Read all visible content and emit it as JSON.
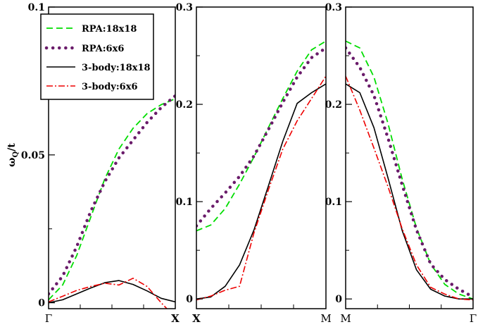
{
  "chart_data": [
    {
      "type": "line",
      "title": "",
      "xlabel": "",
      "ylabel": "ω_Q/t",
      "ylabel_main": "ω",
      "ylabel_sub": "Q",
      "ylabel_rest": "/t",
      "x_start_label": "Γ",
      "x_end_label": "X",
      "x": [
        0,
        1,
        2,
        3,
        4,
        5,
        6,
        7,
        8,
        9
      ],
      "ylim": [
        -0.002,
        0.1
      ],
      "yticks": [
        0,
        0.05,
        0.1
      ],
      "ytick_labels": [
        "0",
        "0.05",
        "0.1"
      ],
      "legend": {
        "placement": "top-left",
        "entries": [
          "RPA:18x18",
          "RPA:6x6",
          "3-body:18x18",
          "3-body:6x6"
        ]
      },
      "series": [
        {
          "name": "RPA:18x18",
          "color": "#00dd00",
          "dash": "dashed",
          "values": [
            0.001,
            0.006,
            0.016,
            0.029,
            0.042,
            0.052,
            0.059,
            0.064,
            0.067,
            0.069
          ]
        },
        {
          "name": "RPA:6x6",
          "color": "#6a1b6a",
          "dash": "dotted",
          "values": [
            0.003,
            0.009,
            0.019,
            0.031,
            0.041,
            0.049,
            0.055,
            0.061,
            0.066,
            0.07
          ]
        },
        {
          "name": "3-body:18x18",
          "color": "#000000",
          "dash": "solid",
          "values": [
            0.0,
            0.001,
            0.003,
            0.005,
            0.0068,
            0.0075,
            0.0062,
            0.004,
            0.0015,
            0.0003
          ]
        },
        {
          "name": "3-body:6x6",
          "color": "#ee0000",
          "dash": "dashdot",
          "values": [
            0.0003,
            0.0022,
            0.0042,
            0.0055,
            0.0066,
            0.006,
            0.0083,
            0.0055,
            0.0,
            -0.005
          ]
        }
      ]
    },
    {
      "type": "line",
      "title": "",
      "x_start_label": "X",
      "x_end_label": "M",
      "x": [
        0,
        1,
        2,
        3,
        4,
        5,
        6,
        7,
        8,
        9
      ],
      "ylim": [
        -0.01,
        0.3
      ],
      "yticks": [
        0,
        0.1,
        0.2,
        0.3
      ],
      "ytick_labels": [
        "0",
        "0.1",
        "0.2",
        "0.3"
      ],
      "series": [
        {
          "name": "RPA:18x18",
          "color": "#00dd00",
          "dash": "dashed",
          "values": [
            0.07,
            0.076,
            0.093,
            0.118,
            0.146,
            0.176,
            0.206,
            0.234,
            0.256,
            0.265
          ]
        },
        {
          "name": "RPA:6x6",
          "color": "#6a1b6a",
          "dash": "dotted",
          "values": [
            0.075,
            0.093,
            0.109,
            0.126,
            0.147,
            0.174,
            0.202,
            0.228,
            0.248,
            0.258
          ]
        },
        {
          "name": "3-body:18x18",
          "color": "#000000",
          "dash": "solid",
          "values": [
            0.0,
            0.002,
            0.013,
            0.035,
            0.071,
            0.116,
            0.162,
            0.201,
            0.212,
            0.221
          ]
        },
        {
          "name": "3-body:6x6",
          "color": "#ee0000",
          "dash": "dashdot",
          "values": [
            -0.001,
            0.003,
            0.009,
            0.013,
            0.068,
            0.112,
            0.154,
            0.183,
            0.206,
            0.229
          ]
        }
      ]
    },
    {
      "type": "line",
      "title": "",
      "x_start_label": "M",
      "x_end_label": "Γ",
      "x": [
        0,
        1,
        2,
        3,
        4,
        5,
        6,
        7,
        8,
        9
      ],
      "ylim": [
        -0.01,
        0.3
      ],
      "yticks": [
        0,
        0.1,
        0.2,
        0.3
      ],
      "ytick_labels": [
        "0",
        "0.1",
        "0.2",
        "0.3"
      ],
      "series": [
        {
          "name": "RPA:18x18",
          "color": "#00dd00",
          "dash": "dashed",
          "values": [
            0.265,
            0.258,
            0.228,
            0.18,
            0.123,
            0.073,
            0.036,
            0.015,
            0.005,
            0.0
          ]
        },
        {
          "name": "RPA:6x6",
          "color": "#6a1b6a",
          "dash": "dotted",
          "values": [
            0.258,
            0.238,
            0.209,
            0.165,
            0.117,
            0.071,
            0.036,
            0.02,
            0.01,
            0.002
          ]
        },
        {
          "name": "3-body:18x18",
          "color": "#000000",
          "dash": "solid",
          "values": [
            0.221,
            0.212,
            0.176,
            0.124,
            0.07,
            0.03,
            0.01,
            0.003,
            0.0,
            0.0
          ]
        },
        {
          "name": "3-body:6x6",
          "color": "#ee0000",
          "dash": "dashdot",
          "values": [
            0.229,
            0.194,
            0.155,
            0.115,
            0.072,
            0.035,
            0.012,
            0.005,
            0.0,
            -0.001
          ]
        }
      ]
    }
  ]
}
